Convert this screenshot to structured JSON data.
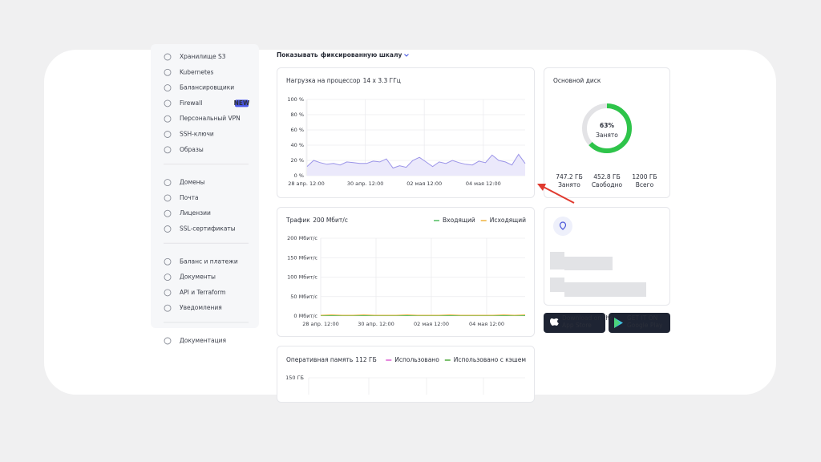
{
  "filter": {
    "prefix": "Показывать",
    "link": "фиксированную шкалу"
  },
  "sidebar": {
    "groups": [
      [
        {
          "label": "Хранилище S3"
        },
        {
          "label": "Kubernetes"
        },
        {
          "label": "Балансировщики"
        },
        {
          "label": "Firewall",
          "badge": "NEW"
        },
        {
          "label": "Персональный VPN"
        },
        {
          "label": "SSH-ключи"
        },
        {
          "label": "Образы"
        }
      ],
      [
        {
          "label": "Домены"
        },
        {
          "label": "Почта"
        },
        {
          "label": "Лицензии"
        },
        {
          "label": "SSL-сертификаты"
        }
      ],
      [
        {
          "label": "Баланс и платежи"
        },
        {
          "label": "Документы"
        },
        {
          "label": "API и Terraform"
        },
        {
          "label": "Уведомления"
        }
      ],
      [
        {
          "label": "Документация"
        }
      ]
    ]
  },
  "cpu": {
    "title": "Нагрузка на процессор",
    "subtitle": "14 x 3.3 ГГц",
    "ylim": [
      0,
      100
    ],
    "yticks": [
      {
        "value": 0,
        "label": "0 %"
      },
      {
        "value": 20,
        "label": "20 %"
      },
      {
        "value": 40,
        "label": "40 %"
      },
      {
        "value": 60,
        "label": "60 %"
      },
      {
        "value": 80,
        "label": "80 %"
      },
      {
        "value": 100,
        "label": "100 %"
      }
    ],
    "x_labels": [
      "28 апр. 12:00",
      "30 апр. 12:00",
      "02 мая 12:00",
      "04 мая 12:00"
    ],
    "color": "#9b94e8",
    "values": [
      12,
      20,
      17,
      15,
      16,
      14,
      18,
      17,
      16,
      16,
      19,
      18,
      22,
      10,
      13,
      11,
      20,
      24,
      18,
      12,
      18,
      16,
      20,
      17,
      15,
      14,
      19,
      17,
      27,
      20,
      18,
      14,
      28,
      16
    ]
  },
  "traffic": {
    "title": "Трафик",
    "subtitle": "200 Мбит/с",
    "ylim": [
      0,
      200
    ],
    "yticks": [
      {
        "value": 0,
        "label": "0 Мбит/с"
      },
      {
        "value": 50,
        "label": "50 Мбит/с"
      },
      {
        "value": 100,
        "label": "100 Мбит/с"
      },
      {
        "value": 150,
        "label": "150 Мбит/с"
      },
      {
        "value": 200,
        "label": "200 Мбит/с"
      }
    ],
    "x_labels": [
      "28 апр. 12:00",
      "30 апр. 12:00",
      "02 мая 12:00",
      "04 мая 12:00"
    ],
    "series": [
      {
        "name": "Входящий",
        "color": "#5cc26b",
        "values": [
          1,
          1,
          1,
          1,
          1,
          1,
          1,
          1,
          1,
          1,
          1,
          1,
          1,
          1,
          1,
          1,
          1,
          1,
          1,
          1
        ]
      },
      {
        "name": "Исходящий",
        "color": "#f0b84a",
        "values": [
          2,
          3,
          2,
          2,
          3,
          2,
          2,
          2,
          3,
          2,
          2,
          2,
          3,
          2,
          2,
          2,
          2,
          3,
          2,
          3
        ]
      }
    ]
  },
  "ram": {
    "title": "Оперативная память",
    "subtitle": "112 ГБ",
    "series": [
      {
        "name": "Использовано",
        "color": "#e06bd6"
      },
      {
        "name": "Использовано с кэшем",
        "color": "#5cb04a"
      }
    ],
    "yticks": [
      {
        "value": 150,
        "label": "150 ГБ"
      }
    ]
  },
  "disk": {
    "title": "Основной диск",
    "value": 63,
    "value_label": "63%",
    "caption": "Занято",
    "color": "#2ec44a",
    "stats": [
      {
        "value": "747.2 ГБ",
        "label": "Занято"
      },
      {
        "value": "452.8 ГБ",
        "label": "Свободно"
      },
      {
        "value": "1200 ГБ",
        "label": "Всего"
      }
    ]
  },
  "apps": [
    {
      "small": "Download on the",
      "big": "App Store"
    },
    {
      "small": "GET IT ON",
      "big": "Google Play"
    }
  ]
}
